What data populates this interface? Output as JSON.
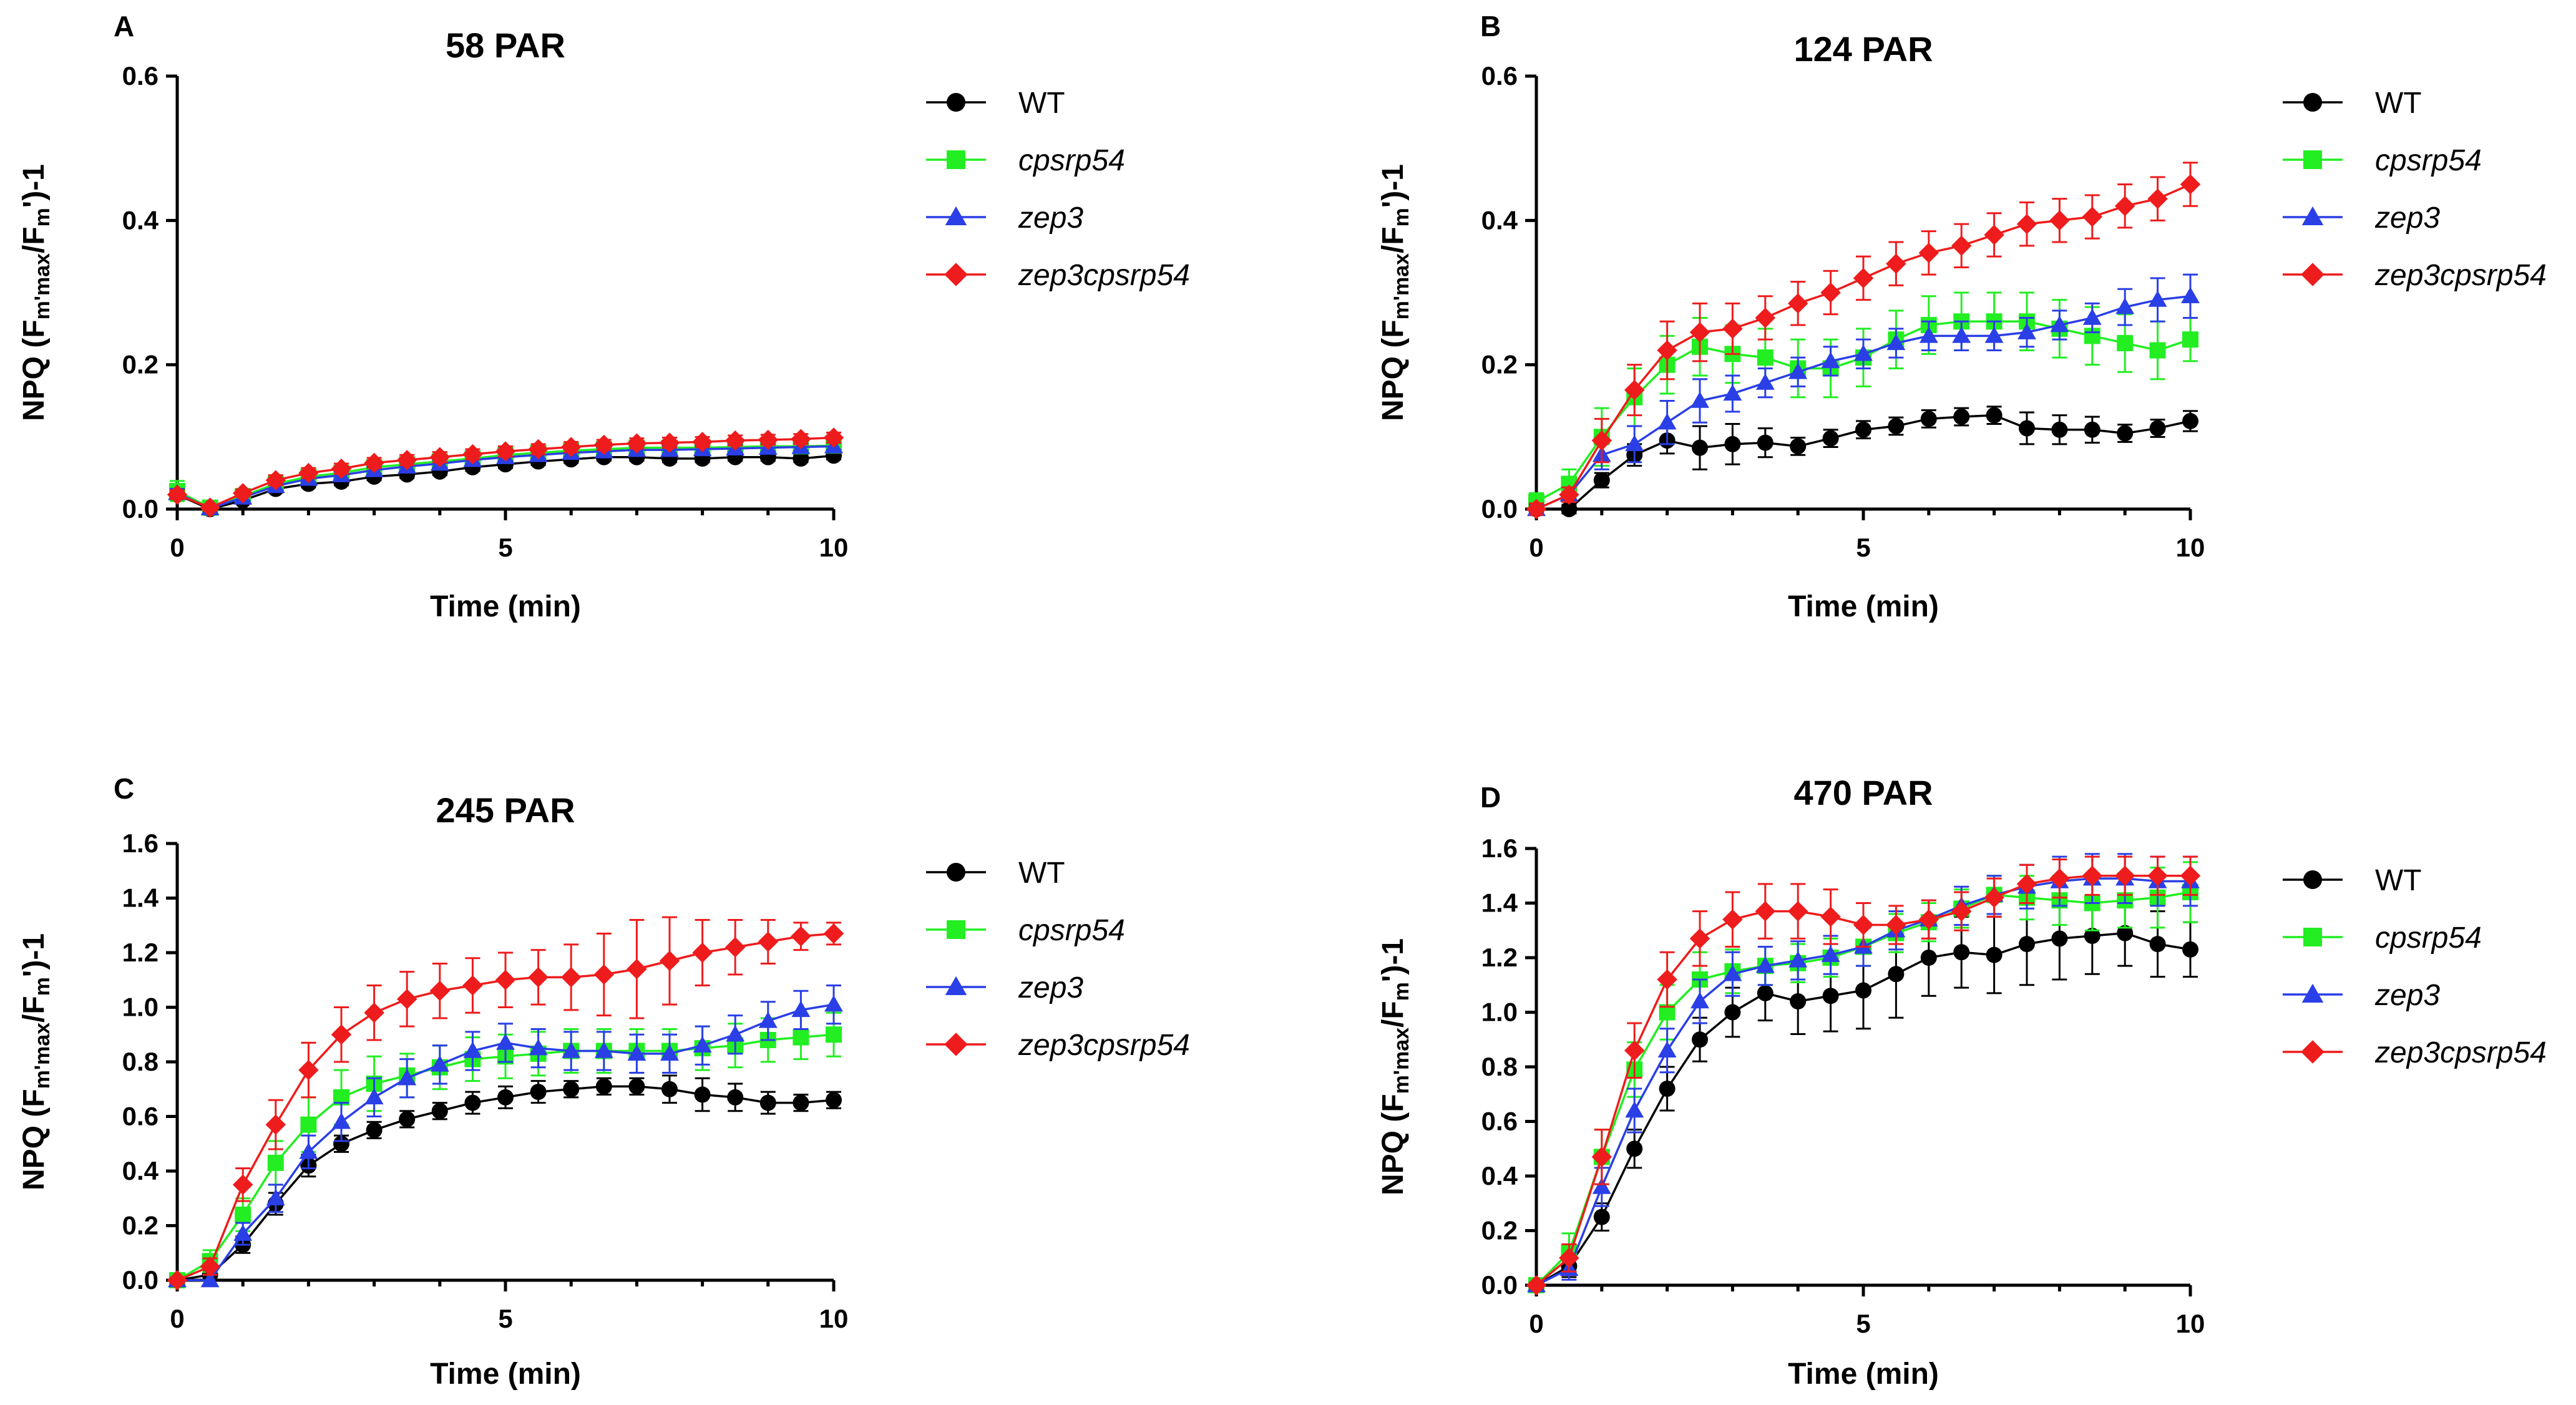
{
  "series_styles": [
    {
      "name": "WT",
      "color": "#000000",
      "marker": "circle",
      "italic": false
    },
    {
      "name": "cpsrp54",
      "color": "#22ee22",
      "marker": "square",
      "italic": true
    },
    {
      "name": "zep3",
      "color": "#2a3fe6",
      "marker": "triangle",
      "italic": true
    },
    {
      "name": "zep3cpsrp54",
      "color": "#ee1c1c",
      "marker": "diamond",
      "italic": true
    }
  ],
  "ylabel_parts": {
    "main": "NPQ (F",
    "sub1": "m'max",
    "mid": "/F",
    "sub2": "m",
    "end": "')-1"
  },
  "chart_data": [
    {
      "type": "line",
      "panel": "A",
      "title": "58 PAR",
      "xlabel": "Time (min)",
      "ylabel": "NPQ (Fm'max/Fm')-1",
      "xlim": [
        0,
        10
      ],
      "ylim": [
        0,
        0.6
      ],
      "xticks": [
        0,
        5,
        10
      ],
      "yticks": [
        "0.0",
        "0.2",
        "0.4",
        "0.6"
      ],
      "x": [
        0,
        0.5,
        1,
        1.5,
        2,
        2.5,
        3,
        3.5,
        4,
        4.5,
        5,
        5.5,
        6,
        6.5,
        7,
        7.5,
        8,
        8.5,
        9,
        9.5,
        10
      ],
      "series": [
        {
          "name": "WT",
          "values": [
            0.02,
            0.0,
            0.012,
            0.028,
            0.035,
            0.038,
            0.045,
            0.048,
            0.052,
            0.058,
            0.062,
            0.066,
            0.069,
            0.072,
            0.072,
            0.07,
            0.07,
            0.072,
            0.072,
            0.07,
            0.074
          ],
          "errors": [
            0.006,
            0.003,
            0.004,
            0.005,
            0.005,
            0.005,
            0.005,
            0.005,
            0.005,
            0.005,
            0.005,
            0.005,
            0.005,
            0.005,
            0.005,
            0.005,
            0.005,
            0.005,
            0.005,
            0.005,
            0.005
          ]
        },
        {
          "name": "cpsrp54",
          "values": [
            0.025,
            0.002,
            0.018,
            0.035,
            0.045,
            0.05,
            0.058,
            0.062,
            0.066,
            0.07,
            0.075,
            0.078,
            0.081,
            0.083,
            0.085,
            0.085,
            0.085,
            0.086,
            0.087,
            0.087,
            0.088
          ],
          "errors": [
            0.014,
            0.004,
            0.005,
            0.006,
            0.006,
            0.006,
            0.006,
            0.006,
            0.006,
            0.006,
            0.006,
            0.006,
            0.006,
            0.006,
            0.006,
            0.006,
            0.006,
            0.006,
            0.006,
            0.006,
            0.006
          ]
        },
        {
          "name": "zep3",
          "values": [
            0.022,
            0.001,
            0.016,
            0.032,
            0.042,
            0.047,
            0.054,
            0.059,
            0.063,
            0.068,
            0.072,
            0.075,
            0.078,
            0.08,
            0.082,
            0.082,
            0.083,
            0.084,
            0.085,
            0.086,
            0.087
          ],
          "errors": [
            0.006,
            0.003,
            0.004,
            0.005,
            0.005,
            0.005,
            0.005,
            0.005,
            0.005,
            0.005,
            0.005,
            0.005,
            0.005,
            0.005,
            0.005,
            0.005,
            0.005,
            0.005,
            0.005,
            0.005,
            0.005
          ]
        },
        {
          "name": "zep3cpsrp54",
          "values": [
            0.02,
            0.002,
            0.022,
            0.04,
            0.05,
            0.056,
            0.064,
            0.068,
            0.072,
            0.076,
            0.08,
            0.083,
            0.086,
            0.089,
            0.091,
            0.092,
            0.093,
            0.095,
            0.096,
            0.097,
            0.099
          ],
          "errors": [
            0.006,
            0.004,
            0.005,
            0.007,
            0.007,
            0.007,
            0.007,
            0.007,
            0.007,
            0.007,
            0.007,
            0.007,
            0.007,
            0.007,
            0.007,
            0.007,
            0.007,
            0.007,
            0.007,
            0.007,
            0.007
          ]
        }
      ]
    },
    {
      "type": "line",
      "panel": "B",
      "title": "124 PAR",
      "xlabel": "Time (min)",
      "ylabel": "NPQ (Fm'max/Fm')-1",
      "xlim": [
        0,
        10
      ],
      "ylim": [
        0,
        0.6
      ],
      "xticks": [
        0,
        5,
        10
      ],
      "yticks": [
        "0.0",
        "0.2",
        "0.4",
        "0.6"
      ],
      "x": [
        0,
        0.5,
        1,
        1.5,
        2,
        2.5,
        3,
        3.5,
        4,
        4.5,
        5,
        5.5,
        6,
        6.5,
        7,
        7.5,
        8,
        8.5,
        9,
        9.5,
        10
      ],
      "series": [
        {
          "name": "WT",
          "values": [
            0.0,
            0.0,
            0.04,
            0.075,
            0.095,
            0.085,
            0.09,
            0.092,
            0.087,
            0.098,
            0.11,
            0.115,
            0.125,
            0.128,
            0.13,
            0.112,
            0.11,
            0.11,
            0.105,
            0.112,
            0.122
          ],
          "errors": [
            0.004,
            0.006,
            0.01,
            0.015,
            0.018,
            0.03,
            0.028,
            0.02,
            0.012,
            0.012,
            0.012,
            0.012,
            0.012,
            0.012,
            0.012,
            0.022,
            0.02,
            0.018,
            0.012,
            0.012,
            0.014
          ]
        },
        {
          "name": "cpsrp54",
          "values": [
            0.01,
            0.035,
            0.1,
            0.155,
            0.2,
            0.225,
            0.215,
            0.21,
            0.195,
            0.195,
            0.21,
            0.235,
            0.255,
            0.26,
            0.26,
            0.26,
            0.25,
            0.24,
            0.23,
            0.22,
            0.235
          ],
          "errors": [
            0.012,
            0.02,
            0.04,
            0.04,
            0.04,
            0.04,
            0.04,
            0.04,
            0.04,
            0.04,
            0.04,
            0.04,
            0.04,
            0.04,
            0.04,
            0.04,
            0.04,
            0.04,
            0.04,
            0.04,
            0.03
          ]
        },
        {
          "name": "zep3",
          "values": [
            0.0,
            0.02,
            0.075,
            0.09,
            0.12,
            0.15,
            0.16,
            0.175,
            0.19,
            0.205,
            0.215,
            0.23,
            0.24,
            0.24,
            0.24,
            0.245,
            0.255,
            0.265,
            0.28,
            0.29,
            0.295
          ],
          "errors": [
            0.006,
            0.01,
            0.02,
            0.025,
            0.03,
            0.03,
            0.025,
            0.02,
            0.02,
            0.02,
            0.02,
            0.02,
            0.02,
            0.02,
            0.02,
            0.02,
            0.02,
            0.02,
            0.025,
            0.03,
            0.03
          ]
        },
        {
          "name": "zep3cpsrp54",
          "values": [
            0.0,
            0.02,
            0.095,
            0.165,
            0.22,
            0.245,
            0.25,
            0.265,
            0.285,
            0.3,
            0.32,
            0.34,
            0.355,
            0.365,
            0.38,
            0.395,
            0.4,
            0.405,
            0.42,
            0.43,
            0.45
          ],
          "errors": [
            0.008,
            0.01,
            0.03,
            0.035,
            0.04,
            0.04,
            0.035,
            0.03,
            0.03,
            0.03,
            0.03,
            0.03,
            0.03,
            0.03,
            0.03,
            0.03,
            0.03,
            0.03,
            0.03,
            0.03,
            0.03
          ]
        }
      ]
    },
    {
      "type": "line",
      "panel": "C",
      "title": "245 PAR",
      "xlabel": "Time (min)",
      "ylabel": "NPQ (Fm'max/Fm')-1",
      "xlim": [
        0,
        10
      ],
      "ylim": [
        0,
        1.6
      ],
      "xticks": [
        0,
        5,
        10
      ],
      "yticks": [
        "0.0",
        "0.2",
        "0.4",
        "0.6",
        "0.8",
        "1.0",
        "1.2",
        "1.4",
        "1.6"
      ],
      "x": [
        0,
        0.5,
        1,
        1.5,
        2,
        2.5,
        3,
        3.5,
        4,
        4.5,
        5,
        5.5,
        6,
        6.5,
        7,
        7.5,
        8,
        8.5,
        9,
        9.5,
        10
      ],
      "series": [
        {
          "name": "WT",
          "values": [
            0.0,
            0.02,
            0.13,
            0.28,
            0.42,
            0.5,
            0.55,
            0.59,
            0.62,
            0.65,
            0.67,
            0.69,
            0.7,
            0.71,
            0.71,
            0.7,
            0.68,
            0.67,
            0.65,
            0.65,
            0.66
          ],
          "errors": [
            0.01,
            0.02,
            0.03,
            0.04,
            0.04,
            0.03,
            0.03,
            0.03,
            0.03,
            0.04,
            0.04,
            0.04,
            0.03,
            0.03,
            0.03,
            0.05,
            0.06,
            0.05,
            0.04,
            0.03,
            0.03
          ]
        },
        {
          "name": "cpsrp54",
          "values": [
            0.0,
            0.07,
            0.24,
            0.43,
            0.57,
            0.67,
            0.72,
            0.75,
            0.78,
            0.81,
            0.82,
            0.83,
            0.84,
            0.84,
            0.84,
            0.84,
            0.85,
            0.86,
            0.88,
            0.89,
            0.9
          ],
          "errors": [
            0.02,
            0.04,
            0.06,
            0.08,
            0.1,
            0.1,
            0.1,
            0.08,
            0.08,
            0.08,
            0.08,
            0.08,
            0.08,
            0.08,
            0.08,
            0.08,
            0.08,
            0.08,
            0.08,
            0.08,
            0.08
          ]
        },
        {
          "name": "zep3",
          "values": [
            0.0,
            0.0,
            0.17,
            0.3,
            0.47,
            0.58,
            0.67,
            0.74,
            0.79,
            0.84,
            0.87,
            0.85,
            0.84,
            0.84,
            0.83,
            0.83,
            0.86,
            0.9,
            0.95,
            0.99,
            1.01
          ],
          "errors": [
            0.01,
            0.02,
            0.04,
            0.05,
            0.06,
            0.07,
            0.07,
            0.07,
            0.07,
            0.07,
            0.07,
            0.07,
            0.07,
            0.07,
            0.07,
            0.07,
            0.07,
            0.07,
            0.07,
            0.07,
            0.07
          ]
        },
        {
          "name": "zep3cpsrp54",
          "values": [
            0.0,
            0.05,
            0.35,
            0.57,
            0.77,
            0.9,
            0.98,
            1.03,
            1.06,
            1.08,
            1.1,
            1.11,
            1.11,
            1.12,
            1.14,
            1.17,
            1.2,
            1.22,
            1.24,
            1.26,
            1.27
          ],
          "errors": [
            0.01,
            0.03,
            0.06,
            0.09,
            0.1,
            0.1,
            0.1,
            0.1,
            0.1,
            0.1,
            0.1,
            0.1,
            0.12,
            0.15,
            0.18,
            0.16,
            0.12,
            0.1,
            0.08,
            0.05,
            0.04
          ]
        }
      ]
    },
    {
      "type": "line",
      "panel": "D",
      "title": "470 PAR",
      "xlabel": "Time (min)",
      "ylabel": "NPQ (Fm'max/Fm')-1",
      "xlim": [
        0,
        10
      ],
      "ylim": [
        0,
        1.6
      ],
      "xticks": [
        0,
        5,
        10
      ],
      "yticks": [
        "0.0",
        "0.2",
        "0.4",
        "0.6",
        "0.8",
        "1.0",
        "1.2",
        "1.4",
        "1.6"
      ],
      "x": [
        0,
        0.5,
        1,
        1.5,
        2,
        2.5,
        3,
        3.5,
        4,
        4.5,
        5,
        5.5,
        6,
        6.5,
        7,
        7.5,
        8,
        8.5,
        9,
        9.5,
        10
      ],
      "series": [
        {
          "name": "WT",
          "values": [
            0.0,
            0.07,
            0.25,
            0.5,
            0.72,
            0.9,
            1.0,
            1.07,
            1.04,
            1.06,
            1.08,
            1.14,
            1.2,
            1.22,
            1.21,
            1.25,
            1.27,
            1.28,
            1.29,
            1.25,
            1.23
          ],
          "errors": [
            0.01,
            0.04,
            0.05,
            0.07,
            0.08,
            0.08,
            0.09,
            0.1,
            0.12,
            0.13,
            0.14,
            0.16,
            0.14,
            0.13,
            0.14,
            0.15,
            0.15,
            0.14,
            0.12,
            0.12,
            0.1
          ]
        },
        {
          "name": "cpsrp54",
          "values": [
            0.0,
            0.12,
            0.47,
            0.79,
            1.0,
            1.12,
            1.15,
            1.17,
            1.18,
            1.2,
            1.24,
            1.29,
            1.33,
            1.38,
            1.43,
            1.42,
            1.41,
            1.4,
            1.41,
            1.42,
            1.44
          ],
          "errors": [
            0.02,
            0.07,
            0.1,
            0.1,
            0.1,
            0.1,
            0.08,
            0.07,
            0.07,
            0.07,
            0.07,
            0.07,
            0.07,
            0.07,
            0.07,
            0.08,
            0.09,
            0.1,
            0.1,
            0.11,
            0.11
          ]
        },
        {
          "name": "zep3",
          "values": [
            0.0,
            0.06,
            0.36,
            0.64,
            0.86,
            1.04,
            1.14,
            1.17,
            1.19,
            1.21,
            1.24,
            1.3,
            1.34,
            1.39,
            1.43,
            1.46,
            1.48,
            1.49,
            1.49,
            1.48,
            1.48
          ],
          "errors": [
            0.01,
            0.04,
            0.07,
            0.08,
            0.08,
            0.08,
            0.08,
            0.07,
            0.07,
            0.07,
            0.07,
            0.07,
            0.07,
            0.07,
            0.07,
            0.08,
            0.09,
            0.09,
            0.09,
            0.09,
            0.09
          ]
        },
        {
          "name": "zep3cpsrp54",
          "values": [
            0.0,
            0.1,
            0.47,
            0.86,
            1.12,
            1.27,
            1.34,
            1.37,
            1.37,
            1.35,
            1.32,
            1.32,
            1.34,
            1.37,
            1.42,
            1.47,
            1.49,
            1.5,
            1.5,
            1.5,
            1.5
          ],
          "errors": [
            0.01,
            0.05,
            0.1,
            0.1,
            0.1,
            0.1,
            0.1,
            0.1,
            0.1,
            0.1,
            0.08,
            0.07,
            0.07,
            0.07,
            0.07,
            0.07,
            0.07,
            0.07,
            0.07,
            0.07,
            0.07
          ]
        }
      ]
    }
  ]
}
